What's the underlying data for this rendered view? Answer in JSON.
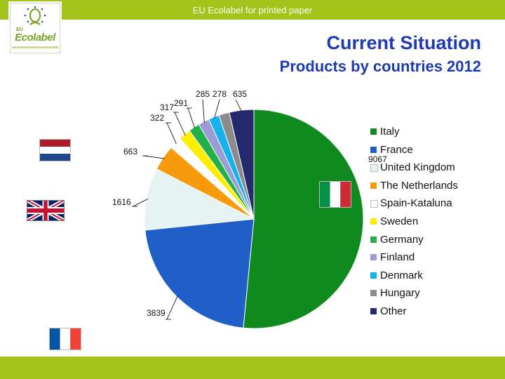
{
  "header": {
    "title": "EU Ecolabel for printed paper"
  },
  "logo": {
    "prefix": "EU",
    "text": "Ecolabel"
  },
  "slide": {
    "title": "Current Situation",
    "subtitle": "Products by countries 2012"
  },
  "colors": {
    "accent_bar": "#a4c41b",
    "title": "#1f3bb3"
  },
  "flags": [
    {
      "name": "netherlands-flag",
      "stripes": [
        "#ae1c28",
        "#ffffff",
        "#21468b"
      ]
    },
    {
      "name": "uk-flag"
    },
    {
      "name": "france-flag",
      "stripes": [
        "#0055a4",
        "#ffffff",
        "#ef4135"
      ]
    },
    {
      "name": "italy-flag",
      "stripes": [
        "#009246",
        "#ffffff",
        "#ce2b37"
      ]
    }
  ],
  "chart_data": {
    "type": "pie",
    "legend_position": "right",
    "slices": [
      {
        "label": "Italy",
        "value": 9067,
        "value_label": "9067",
        "color": "#0f8a1f"
      },
      {
        "label": "France",
        "value": 3839,
        "value_label": "3839",
        "color": "#1f5fc7"
      },
      {
        "label": "United Kingdom",
        "value": 1616,
        "value_label": "1616",
        "color": "#e6f3f3"
      },
      {
        "label": "The Netherlands",
        "value": 663,
        "value_label": "663",
        "color": "#f79a0b"
      },
      {
        "label": "Spain-Kataluna",
        "value": 322,
        "value_label": "322",
        "color": "#ffffff"
      },
      {
        "label": "Sweden",
        "value": 317,
        "value_label": "317",
        "color": "#ffee00"
      },
      {
        "label": "Germany",
        "value": 291,
        "value_label": "291",
        "color": "#22b04b"
      },
      {
        "label": "Finland",
        "value": 285,
        "value_label": "285",
        "color": "#9b9bd6"
      },
      {
        "label": "Denmark",
        "value": 278,
        "value_label": "278",
        "color": "#17b2ee"
      },
      {
        "label": "Hungary",
        "value": 278,
        "value_label": "",
        "color": "#8c8c8c"
      },
      {
        "label": "Other",
        "value": 635,
        "value_label": "635",
        "color": "#232a6e"
      }
    ]
  }
}
